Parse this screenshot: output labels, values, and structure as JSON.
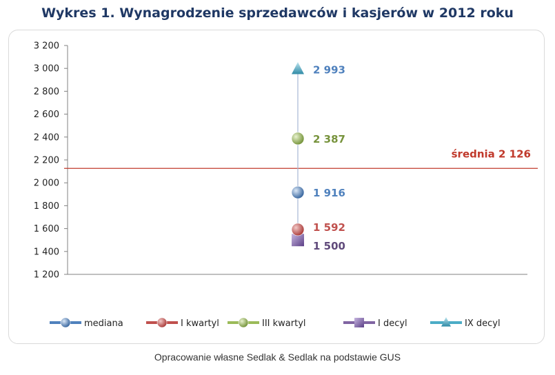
{
  "chart_data": {
    "type": "scatter",
    "title": "Wykres 1. Wynagrodzenie sprzedawców i kasjerów w 2012 roku",
    "xlabel": "",
    "ylabel": "",
    "ylim": [
      1200,
      3200
    ],
    "ytick_step": 200,
    "ytick_labels": [
      "1 200",
      "1 400",
      "1 600",
      "1 800",
      "2 000",
      "2 200",
      "2 400",
      "2 600",
      "2 800",
      "3 000",
      "3 200"
    ],
    "grid": false,
    "legend_position": "bottom",
    "series": [
      {
        "name": "mediana",
        "value": 1916,
        "label": "1 916",
        "color": "#4f81bd",
        "label_color": "#4f81bd",
        "marker": "circle"
      },
      {
        "name": "I kwartyl",
        "value": 1592,
        "label": "1 592",
        "color": "#c0504d",
        "label_color": "#c0504d",
        "marker": "circle"
      },
      {
        "name": "III kwartyl",
        "value": 2387,
        "label": "2 387",
        "color": "#9bbb59",
        "label_color": "#77933c",
        "marker": "circle"
      },
      {
        "name": "I decyl",
        "value": 1500,
        "label": "1 500",
        "color": "#8064a2",
        "label_color": "#604a7b",
        "marker": "square"
      },
      {
        "name": "IX decyl",
        "value": 2993,
        "label": "2 993",
        "color": "#4bacc6",
        "label_color": "#4f81bd",
        "marker": "triangle"
      }
    ],
    "reference_line": {
      "value": 2126,
      "label": "średnia 2 126",
      "color": "#c0392b"
    }
  },
  "footer": "Opracowanie własne Sedlak & Sedlak na podstawie GUS"
}
